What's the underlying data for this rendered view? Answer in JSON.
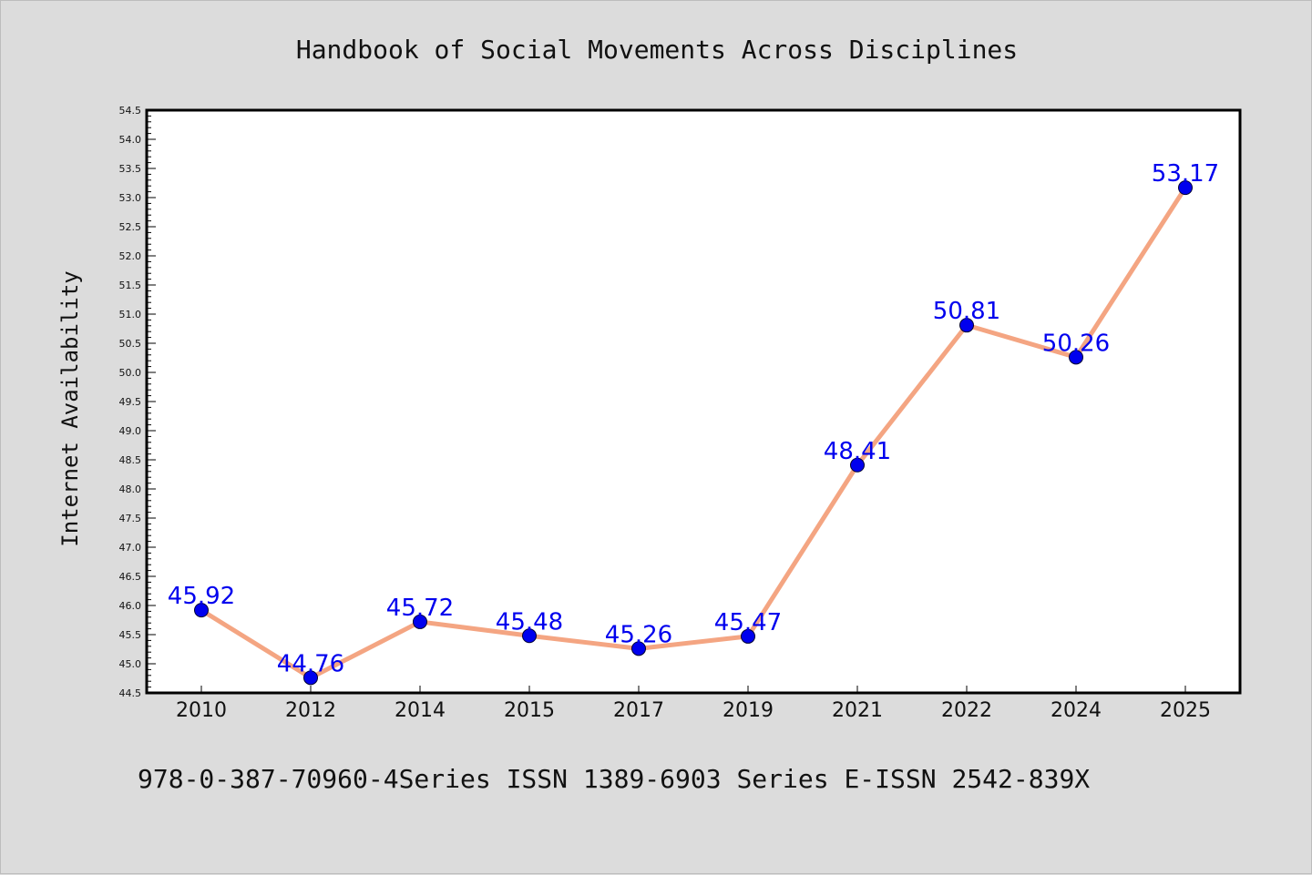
{
  "chart_data": {
    "type": "line",
    "title": "Handbook of Social Movements Across Disciplines",
    "ylabel": "Internet Availability",
    "xlabel": "",
    "categories": [
      "2010",
      "2012",
      "2014",
      "2015",
      "2017",
      "2019",
      "2021",
      "2022",
      "2024",
      "2025"
    ],
    "series": [
      {
        "values": [
          45.92,
          44.76,
          45.72,
          45.48,
          45.26,
          45.47,
          48.41,
          50.81,
          50.26,
          53.17
        ],
        "labels": [
          "45.92",
          "44.76",
          "45.72",
          "45.48",
          "45.26",
          "45.47",
          "48.41",
          "50.81",
          "50.26",
          "53.17"
        ],
        "line_color": "#f4a582",
        "marker_color": "#0000ee",
        "label_color": "#0000ee"
      }
    ],
    "ylim": [
      44.5,
      54.5
    ],
    "yticks": [
      "44.5",
      "45.0",
      "45.5",
      "46.0",
      "46.5",
      "47.0",
      "47.5",
      "48.0",
      "48.5",
      "49.0",
      "49.5",
      "50.0",
      "50.5",
      "51.0",
      "51.5",
      "52.0",
      "52.5",
      "53.0",
      "53.5",
      "54.0",
      "54.5"
    ],
    "grid": false,
    "legend": "none"
  },
  "footer": {
    "text": "978-0-387-70960-4Series ISSN 1389-6903 Series E-ISSN 2542-839X"
  },
  "colors": {
    "background": "#dcdcdc",
    "plot_background": "#ffffff"
  }
}
